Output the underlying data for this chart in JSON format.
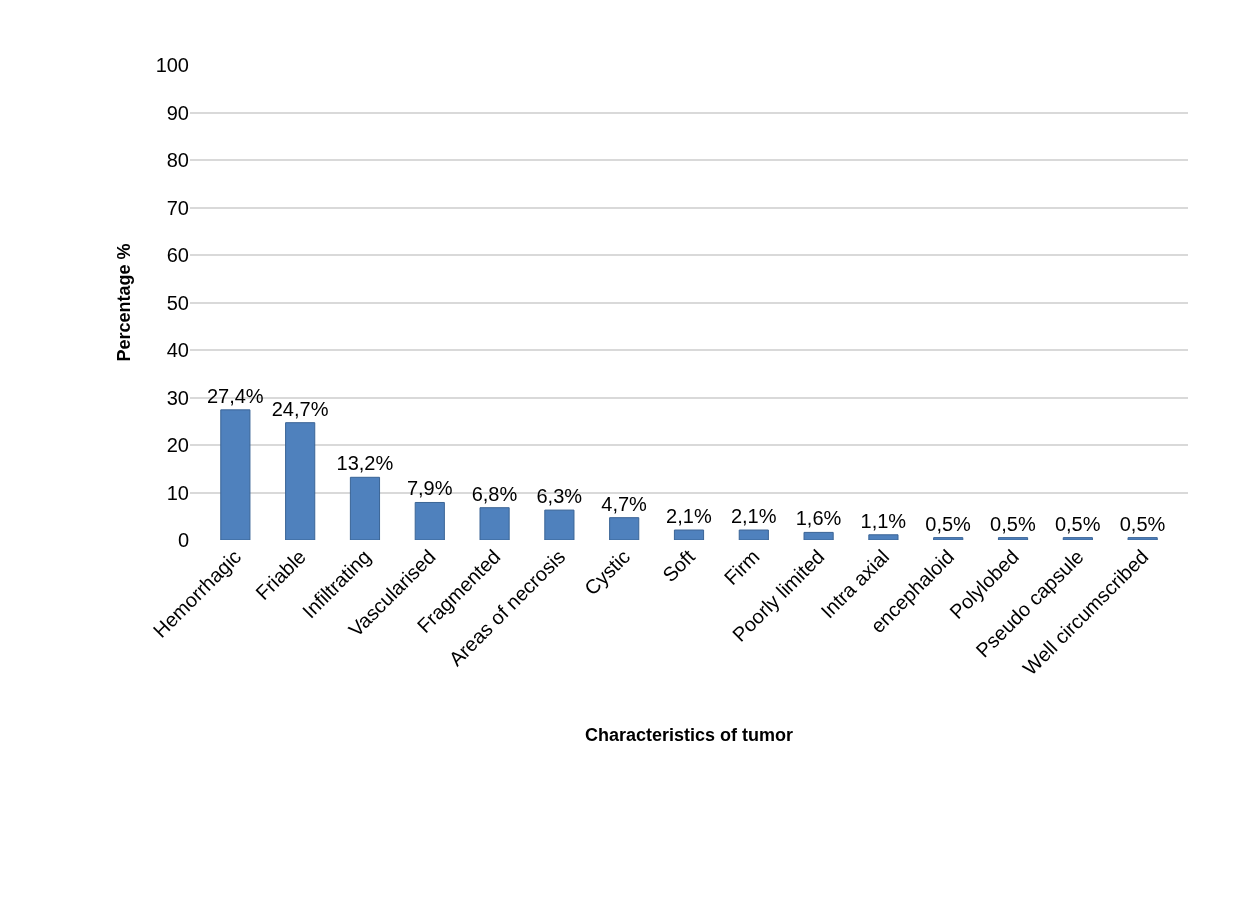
{
  "chart_data": {
    "type": "bar",
    "xlabel": "Characteristics of tumor",
    "ylabel": "Percentage %",
    "categories": [
      "Hemorrhagic",
      "Friable",
      "Infiltrating",
      "Vascularised",
      "Fragmented",
      "Areas of necrosis",
      "Cystic",
      "Soft",
      "Firm",
      "Poorly limited",
      "Intra axial",
      "encephaloid",
      "Polylobed",
      "Pseudo capsule",
      "Well circumscribed"
    ],
    "values": [
      27.4,
      24.7,
      13.2,
      7.9,
      6.8,
      6.3,
      4.7,
      2.1,
      2.1,
      1.6,
      1.1,
      0.5,
      0.5,
      0.5,
      0.5
    ],
    "value_labels": [
      "27,4%",
      "24,7%",
      "13,2%",
      "7,9%",
      "6,8%",
      "6,3%",
      "4,7%",
      "2,1%",
      "2,1%",
      "1,6%",
      "1,1%",
      "0,5%",
      "0,5%",
      "0,5%",
      "0,5%"
    ],
    "color": "#4f81bd",
    "ylim": [
      0,
      100
    ],
    "yticks": [
      0,
      10,
      20,
      30,
      40,
      50,
      60,
      70,
      80,
      90,
      100
    ],
    "grid": "y"
  }
}
